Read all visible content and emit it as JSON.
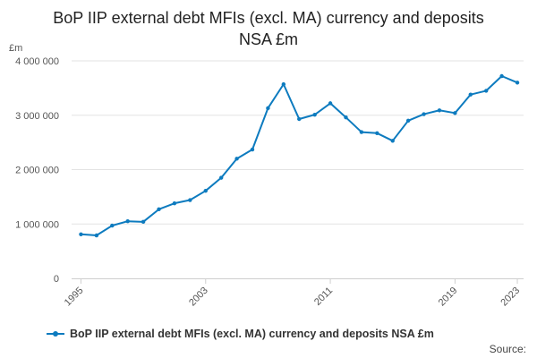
{
  "title_line1": "BoP IIP external debt MFIs (excl. MA) currency and deposits",
  "title_line2": "NSA £m",
  "source_label": "Source:",
  "line_color": "#0d7bbf",
  "chart_data": {
    "type": "line",
    "title": "BoP IIP external debt MFIs (excl. MA) currency and deposits NSA £m",
    "ylabel": "£m",
    "xlabel": "",
    "ylim": [
      0,
      4000000
    ],
    "yticks": [
      0,
      1000000,
      2000000,
      3000000,
      4000000
    ],
    "ytick_labels": [
      "0",
      "1 000 000",
      "2 000 000",
      "3 000 000",
      "4 000 000"
    ],
    "xticks": [
      1995,
      2003,
      2011,
      2019,
      2023
    ],
    "xtick_labels": [
      "1995",
      "2003",
      "2011",
      "2019",
      "2023"
    ],
    "grid": true,
    "legend_position": "bottom",
    "series": [
      {
        "name": "BoP IIP external debt MFIs (excl. MA) currency and deposits NSA £m",
        "x": [
          1995,
          1996,
          1997,
          1998,
          1999,
          2000,
          2001,
          2002,
          2003,
          2004,
          2005,
          2006,
          2007,
          2008,
          2009,
          2010,
          2011,
          2012,
          2013,
          2014,
          2015,
          2016,
          2017,
          2018,
          2019,
          2020,
          2021,
          2022,
          2023
        ],
        "values": [
          810000,
          790000,
          970000,
          1050000,
          1040000,
          1270000,
          1380000,
          1440000,
          1610000,
          1850000,
          2200000,
          2370000,
          3130000,
          3570000,
          2930000,
          3010000,
          3220000,
          2960000,
          2690000,
          2670000,
          2530000,
          2900000,
          3020000,
          3090000,
          3040000,
          3380000,
          3450000,
          3720000,
          3600000
        ]
      }
    ]
  }
}
